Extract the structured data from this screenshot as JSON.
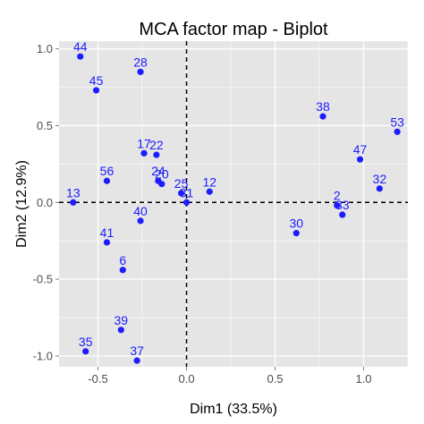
{
  "chart_data": {
    "type": "scatter",
    "title": "MCA factor map - Biplot",
    "xlabel": "Dim1 (33.5%)",
    "ylabel": "Dim2 (12.9%)",
    "xlim": [
      -0.72,
      1.25
    ],
    "ylim": [
      -1.07,
      1.05
    ],
    "x_ticks": [
      -0.5,
      0.0,
      0.5,
      1.0
    ],
    "x_tick_labels": [
      "-0.5",
      "0.0",
      "0.5",
      "1.0"
    ],
    "y_ticks": [
      -1.0,
      -0.5,
      0.0,
      0.5,
      1.0
    ],
    "y_tick_labels": [
      "-1.0",
      "-0.5",
      "0.0",
      "0.5",
      "1.0"
    ],
    "grid": true,
    "reference_lines": {
      "x": 0,
      "y": 0,
      "style": "dashed"
    },
    "panel_color": "#e5e5e5",
    "grid_color": "#ffffff",
    "point_color": "#1c1cff",
    "points": [
      {
        "label": "44",
        "x": -0.6,
        "y": 0.95
      },
      {
        "label": "45",
        "x": -0.51,
        "y": 0.73
      },
      {
        "label": "28",
        "x": -0.26,
        "y": 0.85
      },
      {
        "label": "17",
        "x": -0.24,
        "y": 0.32
      },
      {
        "label": "22",
        "x": -0.17,
        "y": 0.31
      },
      {
        "label": "24",
        "x": -0.16,
        "y": 0.14
      },
      {
        "label": "20",
        "x": -0.14,
        "y": 0.12
      },
      {
        "label": "25",
        "x": -0.03,
        "y": 0.06
      },
      {
        "label": "12",
        "x": 0.13,
        "y": 0.07
      },
      {
        "label": "31",
        "x": 0.0,
        "y": 0.0
      },
      {
        "label": "13",
        "x": -0.64,
        "y": 0.0
      },
      {
        "label": "56",
        "x": -0.45,
        "y": 0.14
      },
      {
        "label": "40",
        "x": -0.26,
        "y": -0.12
      },
      {
        "label": "41",
        "x": -0.45,
        "y": -0.26
      },
      {
        "label": "6",
        "x": -0.36,
        "y": -0.44
      },
      {
        "label": "39",
        "x": -0.37,
        "y": -0.83
      },
      {
        "label": "35",
        "x": -0.57,
        "y": -0.97
      },
      {
        "label": "37",
        "x": -0.28,
        "y": -1.03
      },
      {
        "label": "38",
        "x": 0.77,
        "y": 0.56
      },
      {
        "label": "53",
        "x": 1.19,
        "y": 0.46
      },
      {
        "label": "47",
        "x": 0.98,
        "y": 0.28
      },
      {
        "label": "32",
        "x": 1.09,
        "y": 0.09
      },
      {
        "label": "2",
        "x": 0.85,
        "y": -0.02
      },
      {
        "label": "33",
        "x": 0.88,
        "y": -0.08
      },
      {
        "label": "30",
        "x": 0.62,
        "y": -0.2
      }
    ]
  }
}
